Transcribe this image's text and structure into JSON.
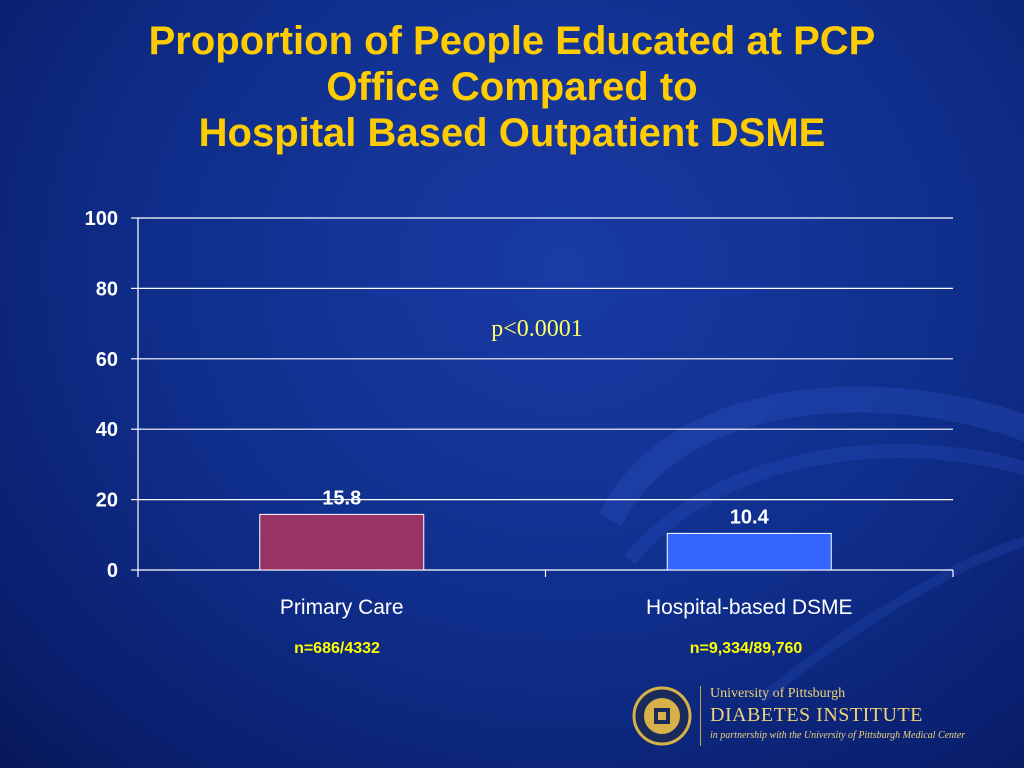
{
  "slide": {
    "title_lines": [
      "Proportion of People Educated at PCP",
      "Office Compared to",
      "Hospital Based Outpatient DSME"
    ],
    "p_value": "p<0.0001",
    "n_labels": [
      "n=686/4332",
      "n=9,334/89,760"
    ]
  },
  "chart_data": {
    "type": "bar",
    "categories": [
      "Primary Care",
      "Hospital-based DSME"
    ],
    "values": [
      15.8,
      10.4
    ],
    "data_labels": [
      "15.8",
      "10.4"
    ],
    "bar_colors": [
      "#993366",
      "#3366ff"
    ],
    "ylim": [
      0,
      100
    ],
    "yticks": [
      0,
      20,
      40,
      60,
      80,
      100
    ],
    "grid": true,
    "title": "",
    "xlabel": "",
    "ylabel": ""
  },
  "logo": {
    "line1": "University of Pittsburgh",
    "line2": "DIABETES INSTITUTE",
    "line3": "in partnership with the University of Pittsburgh Medical Center",
    "seal_text": "UNIVERSITY OF PITTSBURGH"
  },
  "colors": {
    "title": "#ffcc00",
    "p_value": "#ffff66",
    "n_label": "#ffff00",
    "axis": "#ffffff"
  }
}
